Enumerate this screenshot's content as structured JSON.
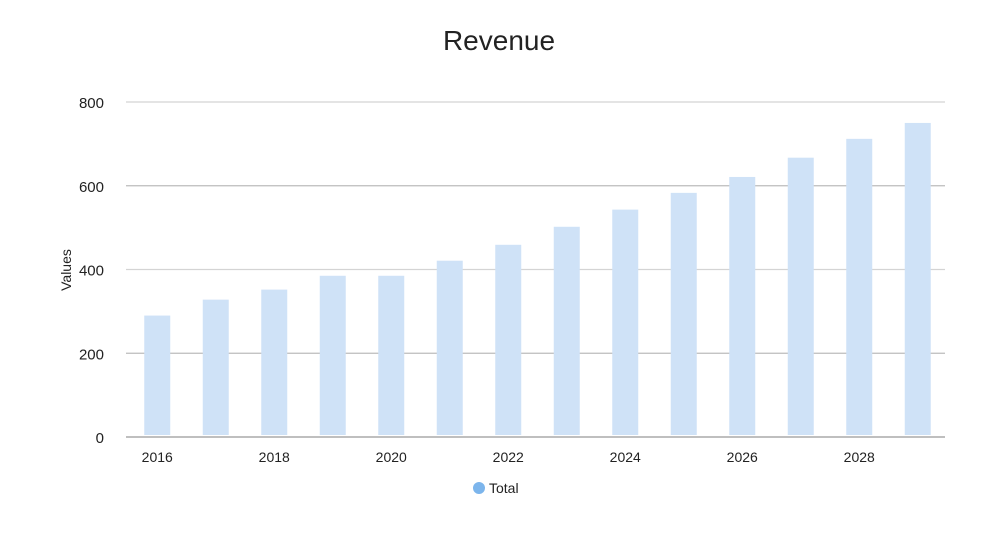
{
  "chart_data": {
    "type": "bar",
    "title": "Revenue",
    "xlabel": "",
    "ylabel": "Values",
    "categories": [
      "2016",
      "2017",
      "2018",
      "2019",
      "2020",
      "2021",
      "2022",
      "2023",
      "2024",
      "2025",
      "2026",
      "2027",
      "2028",
      "2029"
    ],
    "x_tick_labels": [
      "2016",
      "2018",
      "2020",
      "2022",
      "2024",
      "2026",
      "2028"
    ],
    "series": [
      {
        "name": "Total",
        "color": "#cfe2f7",
        "legend_color": "#7cb5ec",
        "values": [
          290,
          328,
          352,
          385,
          385,
          421,
          459,
          502,
          543,
          583,
          621,
          667,
          712,
          750
        ]
      }
    ],
    "ylim": [
      0,
      800
    ],
    "y_ticks": [
      0,
      200,
      400,
      600,
      800
    ],
    "grid": true,
    "legend_position": "bottom-center"
  }
}
